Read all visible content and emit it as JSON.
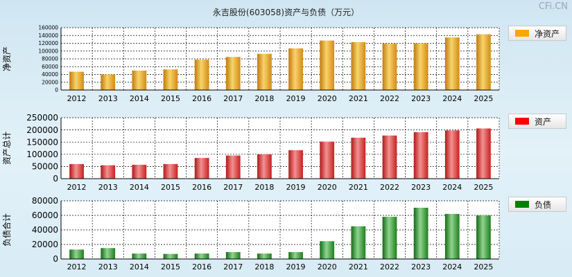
{
  "page": {
    "title": "永吉股份(603058)资产与负债（万元）",
    "watermark": "CFi.CN"
  },
  "chart_data": [
    {
      "type": "bar",
      "ylabel": "净资产",
      "legend": "净资产",
      "color": "#ffa500",
      "grad": [
        "#c07a10",
        "#f7d46a",
        "#d48a14"
      ],
      "ylim": [
        0,
        160000
      ],
      "yticks": [
        0,
        20000,
        40000,
        60000,
        80000,
        100000,
        120000,
        140000,
        160000
      ],
      "categories": [
        "2012",
        "2013",
        "2014",
        "2015",
        "2016",
        "2017",
        "2018",
        "2019",
        "2020",
        "2021",
        "2022",
        "2023",
        "2024",
        "2025"
      ],
      "values": [
        47000,
        40000,
        50000,
        53000,
        78000,
        85000,
        93000,
        107000,
        127000,
        123000,
        119000,
        120000,
        135000,
        143000
      ]
    },
    {
      "type": "bar",
      "ylabel": "资产总计",
      "legend": "资产",
      "color": "#ff0000",
      "grad": [
        "#b01818",
        "#f49090",
        "#c82020"
      ],
      "ylim": [
        0,
        250000
      ],
      "yticks": [
        0,
        50000,
        100000,
        150000,
        200000,
        250000
      ],
      "categories": [
        "2012",
        "2013",
        "2014",
        "2015",
        "2016",
        "2017",
        "2018",
        "2019",
        "2020",
        "2021",
        "2022",
        "2023",
        "2024",
        "2025"
      ],
      "values": [
        60000,
        55000,
        57000,
        60000,
        85000,
        95000,
        100000,
        117000,
        152000,
        168000,
        177000,
        191000,
        198000,
        206000
      ]
    },
    {
      "type": "bar",
      "ylabel": "负债合计",
      "legend": "负债",
      "color": "#008000",
      "grad": [
        "#156a15",
        "#8fd48f",
        "#1e7e1e"
      ],
      "ylim": [
        0,
        80000
      ],
      "yticks": [
        0,
        20000,
        40000,
        60000,
        80000
      ],
      "categories": [
        "2012",
        "2013",
        "2014",
        "2015",
        "2016",
        "2017",
        "2018",
        "2019",
        "2020",
        "2021",
        "2022",
        "2023",
        "2024",
        "2025"
      ],
      "values": [
        13000,
        15000,
        7500,
        7000,
        7500,
        9500,
        7500,
        9500,
        24500,
        45000,
        58000,
        70500,
        62000,
        60000
      ]
    }
  ]
}
